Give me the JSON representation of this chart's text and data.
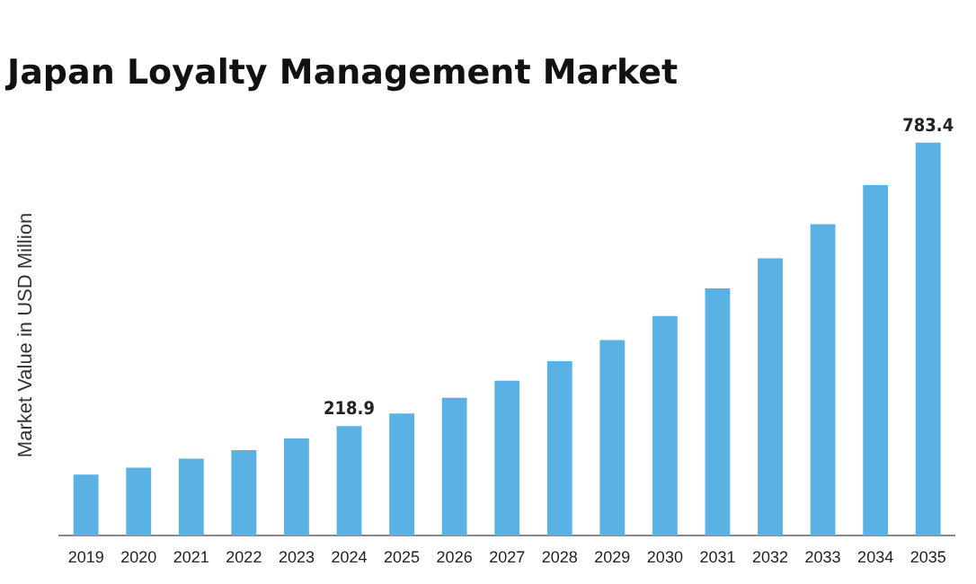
{
  "chart_data": {
    "type": "bar",
    "title": "Japan Loyalty Management Market",
    "ylabel": "Market Value in USD Million",
    "categories": [
      "2019",
      "2020",
      "2021",
      "2022",
      "2023",
      "2024",
      "2025",
      "2026",
      "2027",
      "2028",
      "2029",
      "2030",
      "2031",
      "2032",
      "2033",
      "2034",
      "2035"
    ],
    "values": [
      122,
      136,
      154,
      171,
      194,
      218.9,
      244,
      275,
      309,
      348,
      390,
      438,
      493,
      553,
      621,
      699,
      783.4
    ],
    "value_labels": [
      null,
      null,
      null,
      null,
      null,
      "218.9",
      null,
      null,
      null,
      null,
      null,
      null,
      null,
      null,
      null,
      null,
      "783.4"
    ],
    "color": "#5ab1e4",
    "grid": false,
    "legend": false
  }
}
